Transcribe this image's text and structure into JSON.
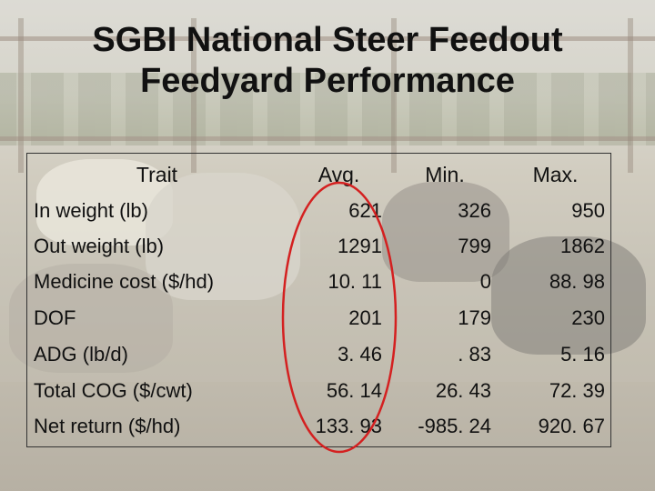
{
  "slide": {
    "title_line1": "SGBI National Steer Feedout",
    "title_line2": "Feedyard Performance"
  },
  "table": {
    "headers": {
      "trait": "Trait",
      "avg": "Avg.",
      "min": "Min.",
      "max": "Max."
    },
    "rows": [
      {
        "trait": "In weight (lb)",
        "avg": "621",
        "min": "326",
        "max": "950"
      },
      {
        "trait": "Out weight (lb)",
        "avg": "1291",
        "min": "799",
        "max": "1862"
      },
      {
        "trait": "Medicine cost ($/hd)",
        "avg": "10. 11",
        "min": "0",
        "max": "88. 98"
      },
      {
        "trait": "DOF",
        "avg": "201",
        "min": "179",
        "max": "230"
      },
      {
        "trait": "ADG (lb/d)",
        "avg": "3. 46",
        "min": ". 83",
        "max": "5. 16"
      },
      {
        "trait": "Total COG ($/cwt)",
        "avg": "56. 14",
        "min": "26. 43",
        "max": "72. 39"
      },
      {
        "trait": "Net return ($/hd)",
        "avg": "133. 93",
        "min": "-985. 24",
        "max": "920. 67"
      }
    ]
  },
  "annotation": {
    "ellipse_color": "#d42020"
  }
}
